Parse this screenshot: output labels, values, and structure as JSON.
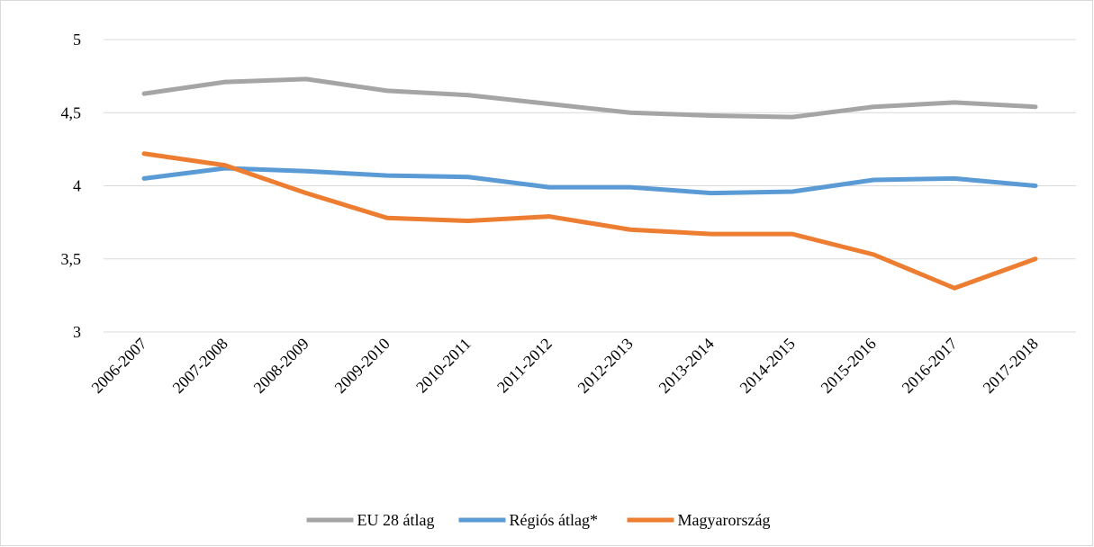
{
  "chart_data": {
    "type": "line",
    "categories": [
      "2006-2007",
      "2007-2008",
      "2008-2009",
      "2009-2010",
      "2010-2011",
      "2011-2012",
      "2012-2013",
      "2013-2014",
      "2014-2015",
      "2015-2016",
      "2016-2017",
      "2017-2018"
    ],
    "series": [
      {
        "name": "EU 28 átlag",
        "color": "#a5a5a5",
        "values": [
          4.63,
          4.71,
          4.73,
          4.65,
          4.62,
          4.56,
          4.5,
          4.48,
          4.47,
          4.54,
          4.57,
          4.54
        ]
      },
      {
        "name": "Régiós átlag*",
        "color": "#5b9bd5",
        "values": [
          4.05,
          4.12,
          4.1,
          4.07,
          4.06,
          3.99,
          3.99,
          3.95,
          3.96,
          4.04,
          4.05,
          4.0
        ]
      },
      {
        "name": "Magyarország",
        "color": "#ed7d31",
        "values": [
          4.22,
          4.14,
          3.95,
          3.78,
          3.76,
          3.79,
          3.7,
          3.67,
          3.67,
          3.53,
          3.3,
          3.5
        ]
      }
    ],
    "ylim": [
      3,
      5
    ],
    "yticks": [
      3,
      {
        "value": 3.5,
        "label": "3,5"
      },
      4,
      {
        "value": 4.5,
        "label": "4,5"
      },
      5
    ],
    "grid": true,
    "legend": "bottom"
  }
}
